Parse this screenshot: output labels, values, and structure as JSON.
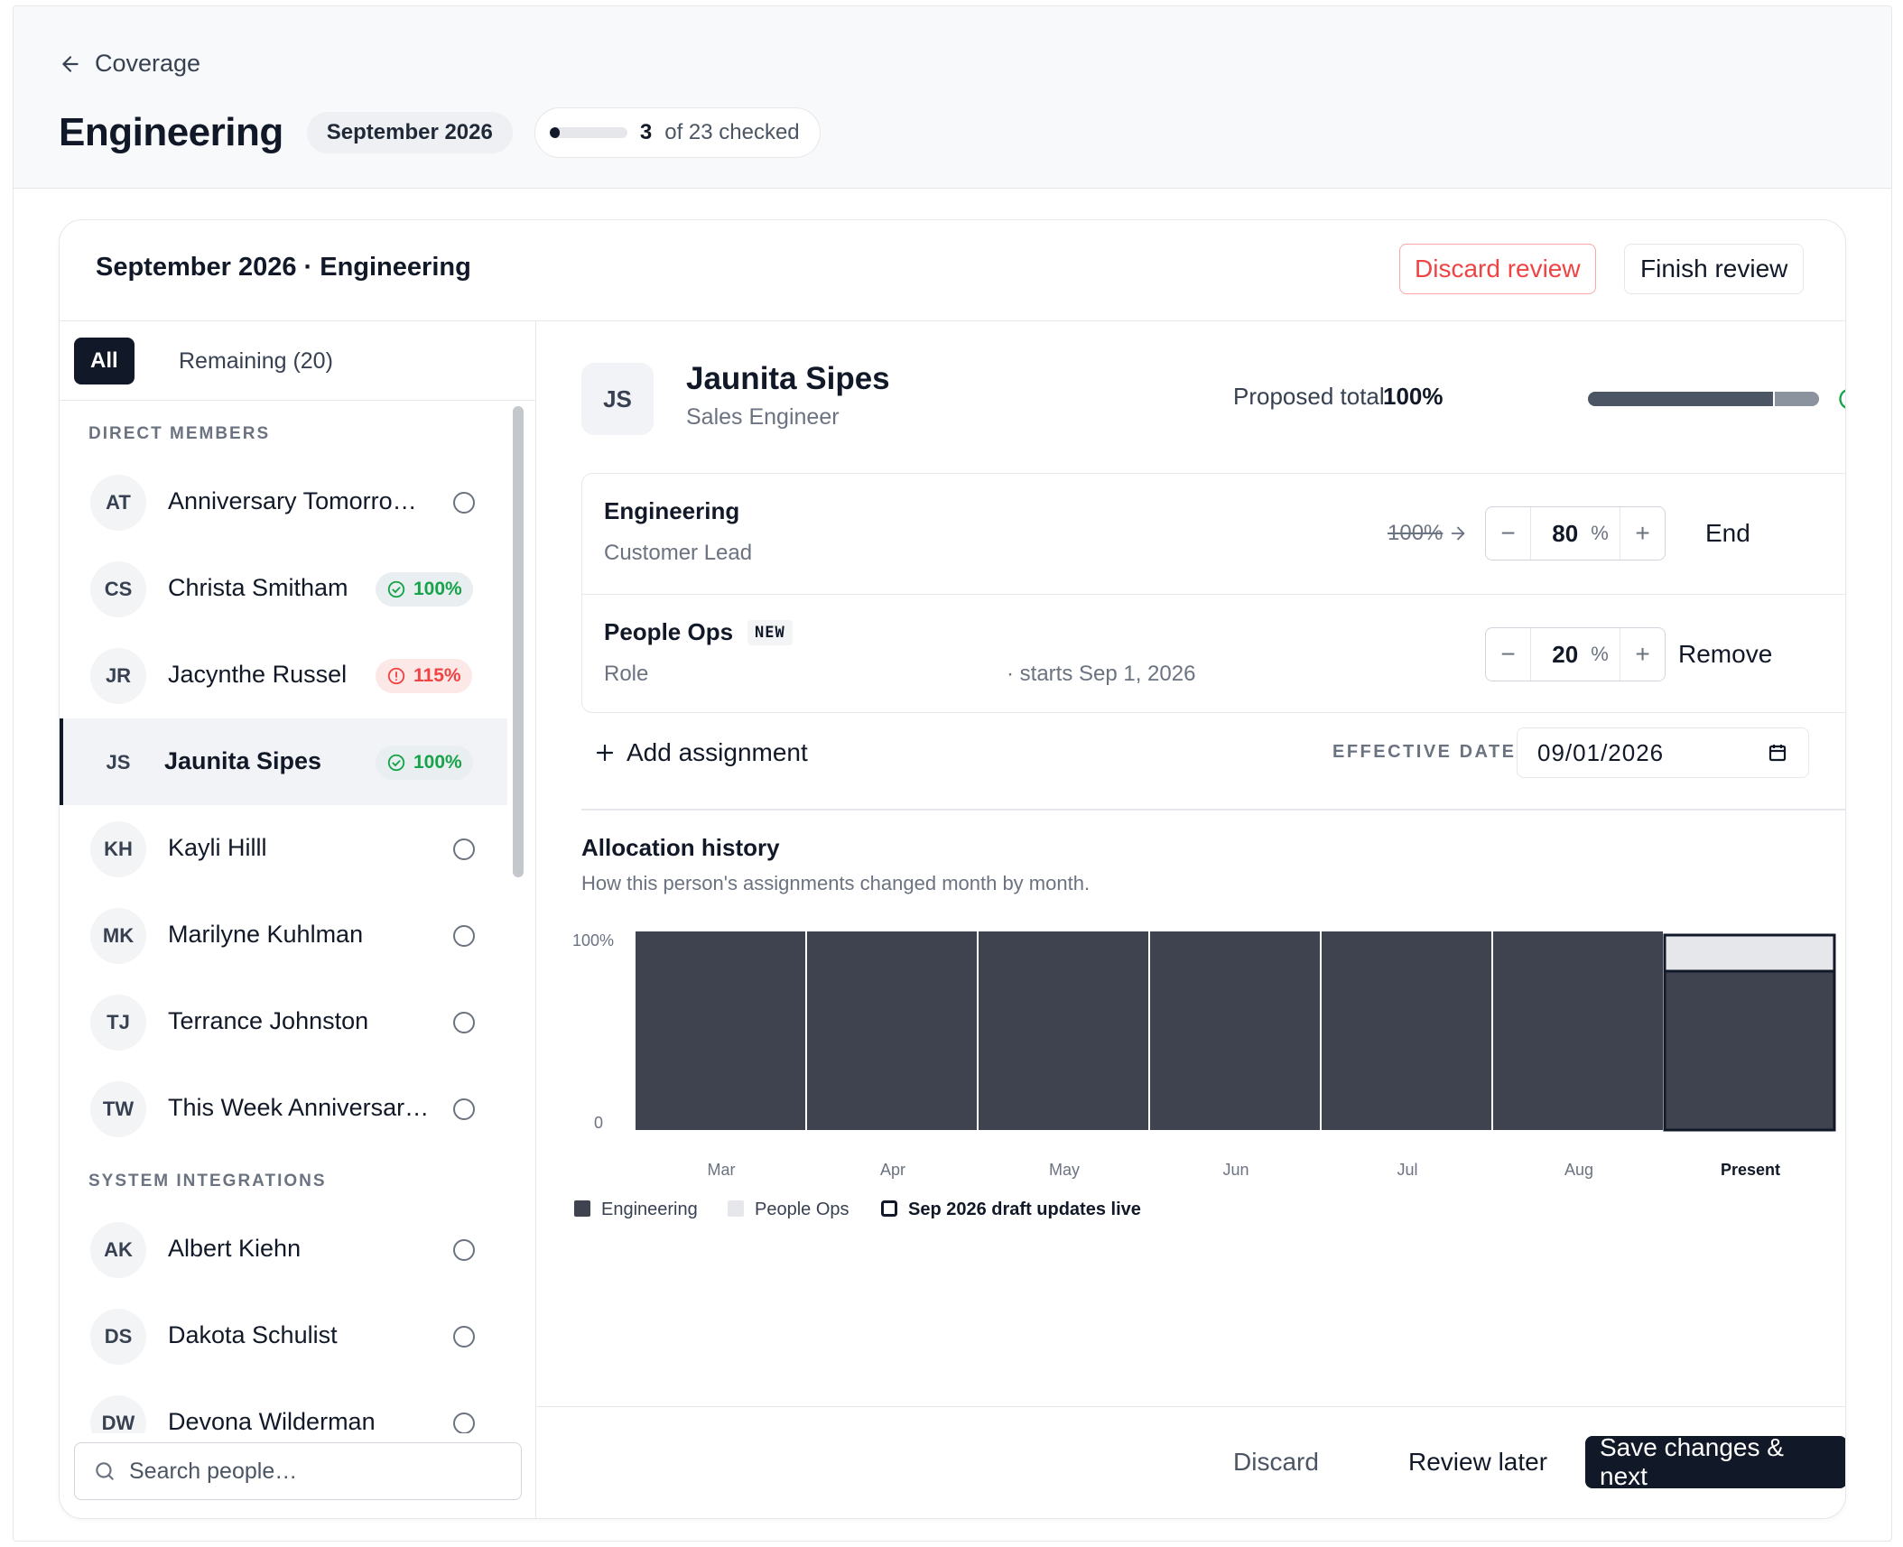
{
  "breadcrumb": {
    "back_label": "Coverage"
  },
  "header": {
    "title": "Engineering",
    "period": "September 2026",
    "progress": {
      "checked": 3,
      "total": 23,
      "checked_label": "3",
      "suffix": "of 23 checked"
    }
  },
  "card": {
    "title": "September 2026 · Engineering",
    "discard_review_label": "Discard review",
    "finish_review_label": "Finish review"
  },
  "sidebar": {
    "tabs": [
      {
        "label": "All",
        "active": true
      },
      {
        "label": "Remaining (20)",
        "active": false
      }
    ],
    "sections": [
      {
        "label": "DIRECT MEMBERS",
        "members": [
          {
            "initials": "AT",
            "name": "Anniversary Tomorro…",
            "status": "unchecked"
          },
          {
            "initials": "CS",
            "name": "Christa Smitham",
            "status": "ok",
            "badge": "100%"
          },
          {
            "initials": "JR",
            "name": "Jacynthe Russel",
            "status": "over",
            "badge": "115%"
          },
          {
            "initials": "JS",
            "name": "Jaunita Sipes",
            "status": "ok",
            "badge": "100%",
            "selected": true
          },
          {
            "initials": "KH",
            "name": "Kayli Hilll",
            "status": "unchecked"
          },
          {
            "initials": "MK",
            "name": "Marilyne Kuhlman",
            "status": "unchecked"
          },
          {
            "initials": "TJ",
            "name": "Terrance Johnston",
            "status": "unchecked"
          },
          {
            "initials": "TW",
            "name": "This Week Anniversar…",
            "status": "unchecked"
          }
        ]
      },
      {
        "label": "SYSTEM INTEGRATIONS",
        "members": [
          {
            "initials": "AK",
            "name": "Albert Kiehn",
            "status": "unchecked"
          },
          {
            "initials": "DS",
            "name": "Dakota Schulist",
            "status": "unchecked"
          },
          {
            "initials": "DW",
            "name": "Devona Wilderman",
            "status": "unchecked"
          }
        ]
      }
    ],
    "search": {
      "placeholder": "Search people…",
      "value": ""
    }
  },
  "person": {
    "initials": "JS",
    "name": "Jaunita Sipes",
    "role": "Sales Engineer",
    "proposed_total_label": "Proposed total",
    "proposed_total": "100%",
    "total_segments": [
      80,
      20
    ]
  },
  "assignments": [
    {
      "team": "Engineering",
      "role": "Customer Lead",
      "old_value": "100%",
      "value": "80",
      "unit": "%",
      "action": "End",
      "is_new": false
    },
    {
      "team": "People Ops",
      "new_tag": "NEW",
      "role": "Role",
      "starts": "· starts Sep 1, 2026",
      "value": "20",
      "unit": "%",
      "action": "Remove",
      "is_new": true
    }
  ],
  "add_assignment_label": "Add assignment",
  "effective_date": {
    "label": "EFFECTIVE DATE",
    "value": "09/01/2026"
  },
  "history": {
    "title": "Allocation history",
    "subtitle": "How this person's assignments changed month by month."
  },
  "chart_data": {
    "type": "bar",
    "stacked": true,
    "categories": [
      "Mar",
      "Apr",
      "May",
      "Jun",
      "Jul",
      "Aug",
      "Present"
    ],
    "series": [
      {
        "name": "Engineering",
        "values": [
          100,
          100,
          100,
          100,
          100,
          100,
          80
        ],
        "color": "#3f4350"
      },
      {
        "name": "People Ops",
        "values": [
          0,
          0,
          0,
          0,
          0,
          0,
          20
        ],
        "color": "#e5e7eb"
      }
    ],
    "highlight_category": "Present",
    "ylim": [
      0,
      100
    ],
    "yticks": [
      "0",
      "100%"
    ],
    "legend": [
      "Engineering",
      "People Ops",
      "Sep 2026 draft updates live"
    ],
    "legend_placement": "bottom-left"
  },
  "footer": {
    "discard_label": "Discard",
    "review_later_label": "Review later",
    "save_next_label": "Save changes & next"
  },
  "colors": {
    "primary": "#111827",
    "danger": "#ef4444",
    "success": "#16a34a",
    "engineering": "#3f4350",
    "people_ops": "#e5e7eb"
  }
}
